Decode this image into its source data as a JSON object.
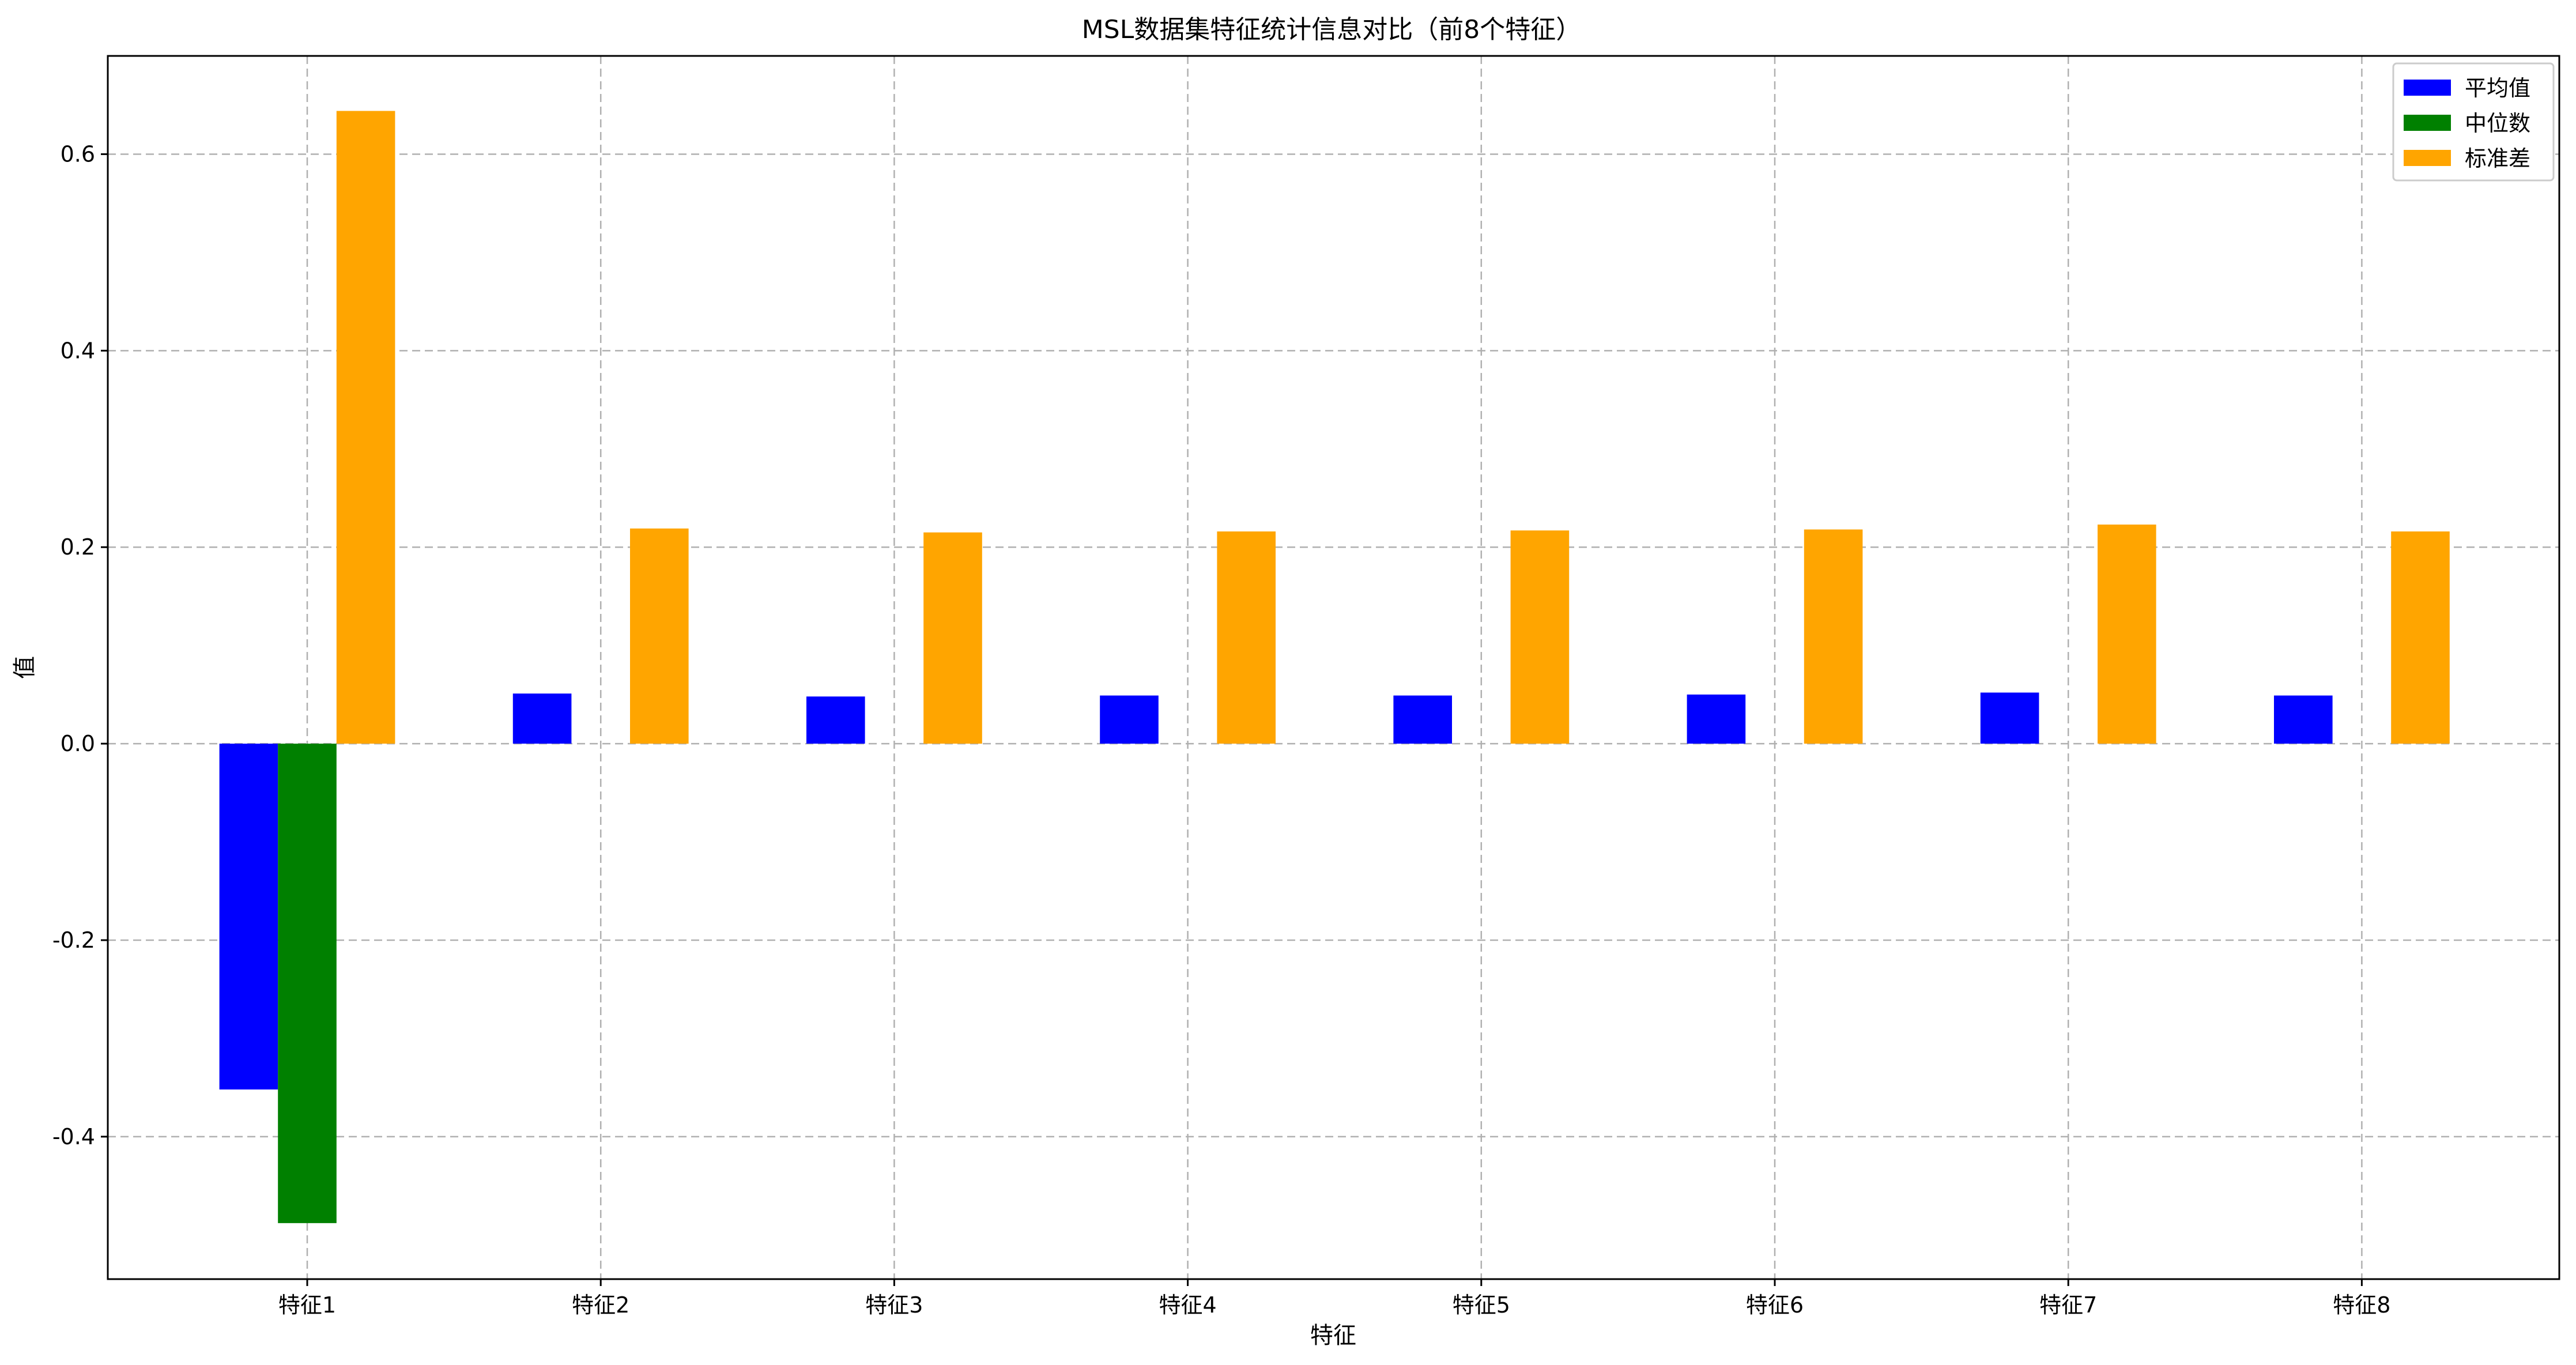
{
  "chart_data": {
    "type": "bar",
    "title": "MSL数据集特征统计信息对比（前8个特征）",
    "xlabel": "特征",
    "ylabel": "值",
    "categories": [
      "特征1",
      "特征2",
      "特征3",
      "特征4",
      "特征5",
      "特征6",
      "特征7",
      "特征8"
    ],
    "series": [
      {
        "name": "平均值",
        "color": "#0000ff",
        "values": [
          -0.352,
          0.051,
          0.048,
          0.049,
          0.049,
          0.05,
          0.052,
          0.049
        ]
      },
      {
        "name": "中位数",
        "color": "#008000",
        "values": [
          -0.488,
          0.0,
          0.0,
          0.0,
          0.0,
          0.0,
          0.0,
          0.0
        ]
      },
      {
        "name": "标准差",
        "color": "#ffa500",
        "values": [
          0.644,
          0.219,
          0.215,
          0.216,
          0.217,
          0.218,
          0.223,
          0.216
        ]
      }
    ],
    "ylim": [
      -0.545,
      0.7
    ],
    "yticks": [
      -0.4,
      -0.2,
      0.0,
      0.2,
      0.4,
      0.6
    ],
    "ytick_labels": [
      "-0.4",
      "-0.2",
      "0.0",
      "0.2",
      "0.4",
      "0.6"
    ],
    "grid": true,
    "legend_position": "top-right"
  }
}
